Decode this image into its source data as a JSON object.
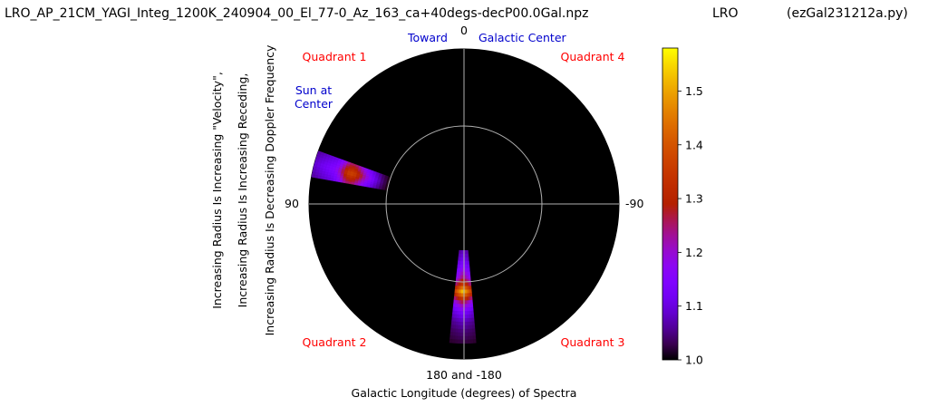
{
  "header": {
    "filename": "LRO_AP_21CM_YAGI_Integ_1200K_240904_00_El_77-0_Az_163_ca+40degs-decP00.0Gal.npz",
    "station": "LRO",
    "program": "(ezGal231212a.py)"
  },
  "annotations": {
    "toward": "Toward",
    "galactic_center": "Galactic Center",
    "sun_line1": "Sun at",
    "sun_line2": "Center",
    "quadrant_1": "Quadrant 1",
    "quadrant_2": "Quadrant 2",
    "quadrant_3": "Quadrant 3",
    "quadrant_4": "Quadrant 4"
  },
  "colors": {
    "background": "#000000",
    "grid": "#b0b0b0",
    "quadrant_label": "#ff0000",
    "direction_label": "#0000cc"
  },
  "chart_data": {
    "type": "polar_heatmap",
    "colormap": "gnuplot",
    "angle_ticks": [
      "0",
      "90",
      "180 and -180",
      "-90"
    ],
    "xlabel": "Galactic Longitude (degrees) of Spectra",
    "ylabel_lines": [
      "Increasing Radius Is Increasing \"Velocity\",",
      "Increasing Radius Is Increasing Receding,",
      "Increasing Radius Is Decreasing Doppler Frequency"
    ],
    "colorbar": {
      "range": [
        1.0,
        1.58
      ],
      "ticks": [
        "1.0",
        "1.1",
        "1.2",
        "1.3",
        "1.4",
        "1.5"
      ],
      "tick_values": [
        1.0,
        1.1,
        1.2,
        1.3,
        1.4,
        1.5
      ]
    },
    "wedges": [
      {
        "label": "Quadrant 1 wedge",
        "longitude_start": 70,
        "longitude_end": 80,
        "radius_range": [
          0.5,
          1.02
        ],
        "profile": [
          [
            0.5,
            1.0
          ],
          [
            0.55,
            1.05
          ],
          [
            0.6,
            1.12
          ],
          [
            0.65,
            1.2
          ],
          [
            0.7,
            1.3
          ],
          [
            0.74,
            1.38
          ],
          [
            0.78,
            1.36
          ],
          [
            0.82,
            1.24
          ],
          [
            0.86,
            1.16
          ],
          [
            0.9,
            1.14
          ],
          [
            0.94,
            1.12
          ],
          [
            0.98,
            1.1
          ],
          [
            1.02,
            1.08
          ]
        ]
      },
      {
        "label": "Quadrant 2/3 wedge",
        "longitude_start": 174,
        "longitude_end": 185,
        "radius_range": [
          0.3,
          0.9
        ],
        "profile": [
          [
            0.3,
            1.08
          ],
          [
            0.36,
            1.12
          ],
          [
            0.42,
            1.18
          ],
          [
            0.48,
            1.26
          ],
          [
            0.52,
            1.36
          ],
          [
            0.55,
            1.5
          ],
          [
            0.57,
            1.56
          ],
          [
            0.6,
            1.4
          ],
          [
            0.64,
            1.25
          ],
          [
            0.7,
            1.14
          ],
          [
            0.76,
            1.08
          ],
          [
            0.82,
            1.05
          ],
          [
            0.88,
            1.03
          ],
          [
            0.9,
            1.02
          ]
        ]
      }
    ]
  }
}
